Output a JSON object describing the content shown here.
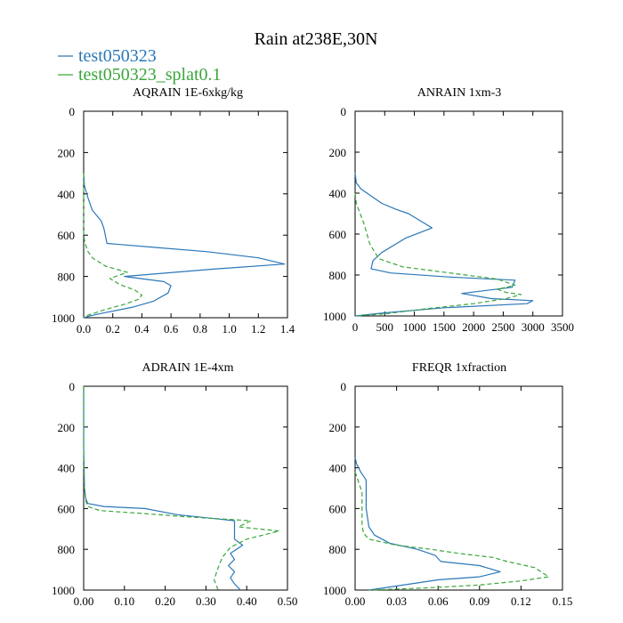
{
  "title": "Rain at238E,30N",
  "legend": [
    {
      "label": "test050323",
      "color": "#2a77b8",
      "dash": "solid"
    },
    {
      "label": "test050323_splat0.1",
      "color": "#3aa63a",
      "dash": "dashed"
    }
  ],
  "chart_data": [
    {
      "type": "line",
      "title": "AQRAIN  1E-6xkg/kg",
      "xlim": [
        0,
        1.4
      ],
      "xticks": [
        0,
        0.2,
        0.4,
        0.6,
        0.8,
        1.0,
        1.2,
        1.4
      ],
      "xtick_labels": [
        "0.0",
        "0.2",
        "0.4",
        "0.6",
        "0.8",
        "1.0",
        "1.2",
        "1.4"
      ],
      "ylim": [
        0,
        1000
      ],
      "yticks": [
        0,
        200,
        400,
        600,
        800,
        1000
      ],
      "ytick_labels": [
        "0",
        "200",
        "400",
        "600",
        "800",
        "1000"
      ],
      "y_inverted": true,
      "series": [
        {
          "name": "test050323",
          "x": [
            0,
            0.005,
            0.03,
            0.06,
            0.12,
            0.14,
            0.16,
            0.5,
            0.85,
            1.2,
            1.38,
            0.88,
            0.28,
            0.55,
            0.6,
            0.58,
            0.48,
            0.33,
            0.15,
            0.05,
            0
          ],
          "y": [
            300,
            360,
            420,
            480,
            530,
            570,
            640,
            660,
            680,
            710,
            740,
            765,
            800,
            825,
            845,
            880,
            920,
            950,
            975,
            990,
            1000
          ]
        },
        {
          "name": "test050323_splat0.1",
          "x": [
            0,
            0,
            0,
            0.01,
            0.03,
            0.06,
            0.15,
            0.3,
            0.18,
            0.25,
            0.35,
            0.4,
            0.38,
            0.28,
            0.15,
            0.02,
            0
          ],
          "y": [
            300,
            500,
            600,
            640,
            680,
            710,
            750,
            780,
            810,
            840,
            865,
            890,
            910,
            935,
            960,
            990,
            1000
          ]
        }
      ]
    },
    {
      "type": "line",
      "title": "ANRAIN  1xm-3",
      "xlim": [
        0,
        3500
      ],
      "xticks": [
        0,
        500,
        1000,
        1500,
        2000,
        2500,
        3000,
        3500
      ],
      "xtick_labels": [
        "0",
        "500",
        "1000",
        "1500",
        "2000",
        "2500",
        "3000",
        "3500"
      ],
      "ylim": [
        0,
        1000
      ],
      "yticks": [
        0,
        200,
        400,
        600,
        800,
        1000
      ],
      "ytick_labels": [
        "0",
        "200",
        "400",
        "600",
        "800",
        "1000"
      ],
      "y_inverted": true,
      "series": [
        {
          "name": "test050323",
          "x": [
            0,
            20,
            100,
            300,
            450,
            700,
            900,
            1300,
            850,
            450,
            300,
            270,
            600,
            1600,
            2700,
            2650,
            1800,
            2300,
            3000,
            2900,
            1500,
            500,
            0
          ],
          "y": [
            300,
            350,
            380,
            420,
            450,
            480,
            500,
            570,
            620,
            690,
            730,
            770,
            790,
            810,
            825,
            860,
            890,
            915,
            925,
            940,
            960,
            985,
            1000
          ]
        },
        {
          "name": "test050323_splat0.1",
          "x": [
            0,
            20,
            150,
            250,
            400,
            800,
            1600,
            2400,
            2700,
            2400,
            2550,
            2800,
            2550,
            2000,
            1200,
            500,
            0
          ],
          "y": [
            400,
            450,
            550,
            650,
            720,
            760,
            790,
            820,
            850,
            870,
            885,
            895,
            915,
            940,
            965,
            990,
            1000
          ]
        }
      ]
    },
    {
      "type": "line",
      "title": "ADRAIN  1E-4xm",
      "xlim": [
        0,
        0.5
      ],
      "xticks": [
        0,
        0.1,
        0.2,
        0.3,
        0.4,
        0.5
      ],
      "xtick_labels": [
        "0.00",
        "0.10",
        "0.20",
        "0.30",
        "0.40",
        "0.50"
      ],
      "ylim": [
        0,
        1000
      ],
      "yticks": [
        0,
        200,
        400,
        600,
        800,
        1000
      ],
      "ytick_labels": [
        "0",
        "200",
        "400",
        "600",
        "800",
        "1000"
      ],
      "y_inverted": true,
      "series": [
        {
          "name": "test050323",
          "x": [
            0,
            0,
            0.002,
            0.005,
            0.01,
            0.05,
            0.15,
            0.23,
            0.37,
            0.37,
            0.39,
            0.36,
            0.37,
            0.355,
            0.37,
            0.36,
            0.37,
            0.385
          ],
          "y": [
            0,
            300,
            500,
            550,
            575,
            590,
            600,
            630,
            660,
            750,
            780,
            820,
            850,
            880,
            910,
            940,
            970,
            1000
          ]
        },
        {
          "name": "test050323_splat0.1",
          "x": [
            0,
            0,
            0.002,
            0.005,
            0.01,
            0.04,
            0.15,
            0.25,
            0.41,
            0.38,
            0.48,
            0.4,
            0.36,
            0.34,
            0.33,
            0.32,
            0.33
          ],
          "y": [
            0,
            300,
            500,
            560,
            590,
            610,
            625,
            640,
            660,
            690,
            710,
            750,
            790,
            840,
            890,
            950,
            1000
          ]
        }
      ]
    },
    {
      "type": "line",
      "title": "FREQR  1xfraction",
      "xlim": [
        0,
        0.15
      ],
      "xticks": [
        0,
        0.03,
        0.06,
        0.09,
        0.12,
        0.15
      ],
      "xtick_labels": [
        "0.00",
        "0.03",
        "0.06",
        "0.09",
        "0.12",
        "0.15"
      ],
      "ylim": [
        0,
        1000
      ],
      "yticks": [
        0,
        200,
        400,
        600,
        800,
        1000
      ],
      "ytick_labels": [
        "0",
        "200",
        "400",
        "600",
        "800",
        "1000"
      ],
      "y_inverted": true,
      "series": [
        {
          "name": "test050323",
          "x": [
            0,
            0.001,
            0.004,
            0.008,
            0.008,
            0.008,
            0.01,
            0.014,
            0.025,
            0.045,
            0.058,
            0.062,
            0.09,
            0.105,
            0.09,
            0.06,
            0.04,
            0.01
          ],
          "y": [
            350,
            380,
            420,
            460,
            520,
            600,
            690,
            730,
            770,
            800,
            830,
            860,
            880,
            910,
            935,
            950,
            970,
            1000
          ]
        },
        {
          "name": "test050323_splat0.1",
          "x": [
            0,
            0.002,
            0.005,
            0.005,
            0.005,
            0.006,
            0.01,
            0.03,
            0.055,
            0.075,
            0.1,
            0.11,
            0.13,
            0.14,
            0.12,
            0.09,
            0.05,
            0.01
          ],
          "y": [
            420,
            460,
            520,
            600,
            680,
            720,
            750,
            780,
            800,
            820,
            840,
            860,
            890,
            935,
            955,
            975,
            990,
            1000
          ]
        }
      ]
    }
  ]
}
